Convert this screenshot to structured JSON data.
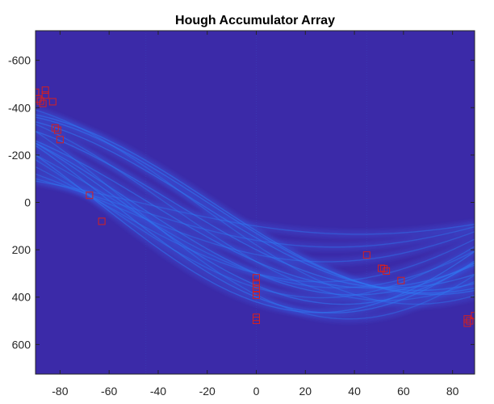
{
  "chart_data": {
    "type": "heatmap",
    "title": "Hough Accumulator Array",
    "xlabel": "",
    "ylabel": "",
    "xlim": [
      -90,
      89
    ],
    "ylim": [
      -725,
      725
    ],
    "y_reversed": true,
    "grid": false,
    "xticks": [
      -80,
      -60,
      -40,
      -20,
      0,
      20,
      40,
      60,
      80
    ],
    "yticks": [
      -600,
      -400,
      -200,
      0,
      200,
      400,
      600
    ],
    "ytick_labels": [
      "-600",
      "-400",
      "-200",
      "0",
      "200",
      "400",
      "600"
    ],
    "xtick_labels": [
      "-80",
      "-60",
      "-40",
      "-20",
      "0",
      "20",
      "40",
      "60",
      "80"
    ],
    "colors": {
      "background": "#3b2aa8",
      "band_dim": "#3a50d8",
      "band_mid": "#2f78f0",
      "band_bright": "#3aa0ff",
      "peak_marker": "#d42020",
      "axis": "#262626"
    },
    "peaks": [
      {
        "theta": -90,
        "rho": -465
      },
      {
        "theta": -89,
        "rho": -437
      },
      {
        "theta": -88,
        "rho": -428
      },
      {
        "theta": -87,
        "rho": -418
      },
      {
        "theta": -86,
        "rho": -474
      },
      {
        "theta": -86,
        "rho": -453
      },
      {
        "theta": -83,
        "rho": -425
      },
      {
        "theta": -82,
        "rho": -315
      },
      {
        "theta": -81,
        "rho": -305
      },
      {
        "theta": -80,
        "rho": -265
      },
      {
        "theta": -68,
        "rho": -30
      },
      {
        "theta": -63,
        "rho": 80
      },
      {
        "theta": 0,
        "rho": 318
      },
      {
        "theta": 0,
        "rho": 340
      },
      {
        "theta": 0,
        "rho": 362
      },
      {
        "theta": 0,
        "rho": 378
      },
      {
        "theta": 0,
        "rho": 392
      },
      {
        "theta": 0,
        "rho": 485
      },
      {
        "theta": 0,
        "rho": 498
      },
      {
        "theta": 45,
        "rho": 222
      },
      {
        "theta": 51,
        "rho": 278
      },
      {
        "theta": 52,
        "rho": 280
      },
      {
        "theta": 53,
        "rho": 290
      },
      {
        "theta": 59,
        "rho": 330
      },
      {
        "theta": 86,
        "rho": 492
      },
      {
        "theta": 86,
        "rho": 510
      },
      {
        "theta": 87,
        "rho": 500
      },
      {
        "theta": 89,
        "rho": 478
      }
    ],
    "sinusoids": [
      {
        "x": 120,
        "y": 370,
        "w": 0.55
      },
      {
        "x": 130,
        "y": 360,
        "w": 0.55
      },
      {
        "x": 150,
        "y": 340,
        "w": 0.55
      },
      {
        "x": 200,
        "y": 300,
        "w": 0.55
      },
      {
        "x": 250,
        "y": 260,
        "w": 0.55
      },
      {
        "x": 300,
        "y": 250,
        "w": 0.55
      },
      {
        "x": 350,
        "y": 250,
        "w": 0.55
      },
      {
        "x": 400,
        "y": 240,
        "w": 0.55
      },
      {
        "x": 420,
        "y": 200,
        "w": 0.55
      },
      {
        "x": 360,
        "y": 180,
        "w": 0.45
      },
      {
        "x": 300,
        "y": 150,
        "w": 0.45
      },
      {
        "x": 220,
        "y": 120,
        "w": 0.45
      },
      {
        "x": 160,
        "y": 100,
        "w": 0.45
      },
      {
        "x": 100,
        "y": 90,
        "w": 0.45
      },
      {
        "x": 300,
        "y": 200,
        "w": 0.45
      },
      {
        "x": 250,
        "y": 330,
        "w": 0.45
      },
      {
        "x": 180,
        "y": 390,
        "w": 0.45
      },
      {
        "x": 390,
        "y": 300,
        "w": 0.45
      }
    ]
  }
}
